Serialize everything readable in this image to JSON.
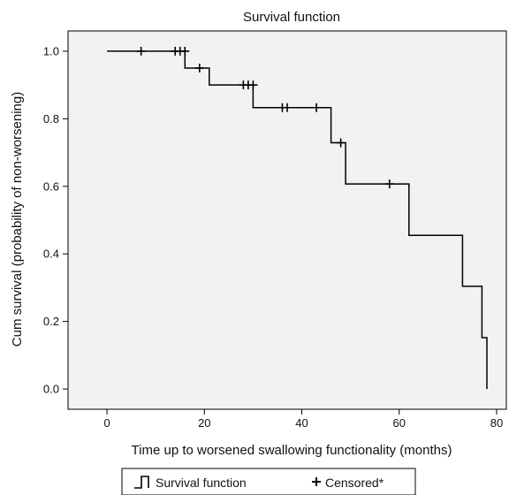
{
  "chart_data": {
    "type": "line",
    "title": "Survival function",
    "xlabel": "Time up to worsened swallowing functionality (months)",
    "ylabel": "Cum survival (probability of non-worsening)",
    "xlim": [
      -8,
      82
    ],
    "ylim": [
      -0.06,
      1.06
    ],
    "x_ticks": [
      0,
      20,
      40,
      60,
      80
    ],
    "x_tick_labels": [
      "0",
      "20",
      "40",
      "60",
      "80"
    ],
    "y_ticks": [
      0.0,
      0.2,
      0.4,
      0.6,
      0.8,
      1.0
    ],
    "y_tick_labels": [
      "0.0",
      "0.2",
      "0.4",
      "0.6",
      "0.8",
      "1.0"
    ],
    "grid": false,
    "background": "#f2f2f2",
    "line_color": "#000000",
    "legend_position": "bottom",
    "series": [
      {
        "name": "Survival function",
        "step": true,
        "x": [
          0,
          16,
          21,
          30,
          46,
          49,
          62,
          73,
          77,
          78,
          78
        ],
        "y": [
          1.0,
          0.95,
          0.9,
          0.833,
          0.729,
          0.607,
          0.455,
          0.304,
          0.152,
          0.152,
          0.0
        ]
      },
      {
        "name": "Censored*",
        "marker": "plus",
        "x": [
          7,
          14,
          15,
          16,
          19,
          28,
          29,
          30,
          36,
          37,
          43,
          48,
          58
        ],
        "y": [
          1.0,
          1.0,
          1.0,
          1.0,
          0.95,
          0.9,
          0.9,
          0.9,
          0.833,
          0.833,
          0.833,
          0.729,
          0.607
        ]
      }
    ],
    "legend": [
      {
        "label": "Survival function",
        "symbol": "step"
      },
      {
        "label": "Censored*",
        "symbol": "plus"
      }
    ]
  }
}
